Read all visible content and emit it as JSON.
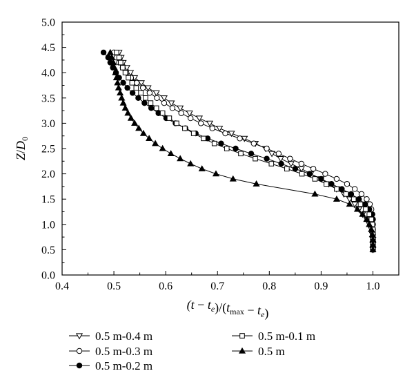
{
  "chart_data": {
    "type": "line",
    "title": "",
    "xlabel": "(t − t_e)/(t_max − t_e)",
    "ylabel": "Z/D_0",
    "xlim": [
      0.4,
      1.05
    ],
    "ylim": [
      0.0,
      5.0
    ],
    "xticks": [
      "0.4",
      "0.5",
      "0.6",
      "0.7",
      "0.8",
      "0.9",
      "1.0"
    ],
    "yticks": [
      "0.0",
      "0.5",
      "1.0",
      "1.5",
      "2.0",
      "2.5",
      "3.0",
      "3.5",
      "4.0",
      "4.5",
      "5.0"
    ],
    "grid": false,
    "legend_position": "below",
    "series": [
      {
        "name": "0.5 m-0.4 m",
        "marker": "triangle-down-open",
        "points": [
          [
            0.51,
            4.4
          ],
          [
            0.514,
            4.3
          ],
          [
            0.518,
            4.2
          ],
          [
            0.525,
            4.1
          ],
          [
            0.532,
            4.0
          ],
          [
            0.54,
            3.9
          ],
          [
            0.553,
            3.8
          ],
          [
            0.566,
            3.7
          ],
          [
            0.582,
            3.6
          ],
          [
            0.597,
            3.5
          ],
          [
            0.611,
            3.4
          ],
          [
            0.628,
            3.3
          ],
          [
            0.646,
            3.2
          ],
          [
            0.665,
            3.1
          ],
          [
            0.685,
            3.0
          ],
          [
            0.704,
            2.9
          ],
          [
            0.727,
            2.8
          ],
          [
            0.752,
            2.7
          ],
          [
            0.773,
            2.6
          ],
          [
            0.793,
            2.5
          ],
          [
            0.805,
            2.4
          ],
          [
            0.822,
            2.3
          ],
          [
            0.842,
            2.2
          ],
          [
            0.862,
            2.1
          ],
          [
            0.88,
            2.0
          ],
          [
            0.9,
            1.9
          ],
          [
            0.915,
            1.8
          ],
          [
            0.93,
            1.7
          ],
          [
            0.944,
            1.6
          ],
          [
            0.955,
            1.5
          ],
          [
            0.965,
            1.4
          ],
          [
            0.973,
            1.3
          ],
          [
            0.98,
            1.2
          ],
          [
            0.988,
            1.1
          ],
          [
            0.993,
            1.0
          ],
          [
            0.997,
            0.9
          ],
          [
            0.999,
            0.8
          ],
          [
            1.0,
            0.7
          ],
          [
            1.0,
            0.6
          ],
          [
            1.0,
            0.5
          ]
        ]
      },
      {
        "name": "0.5 m-0.3 m",
        "marker": "circle-open",
        "points": [
          [
            0.5,
            4.4
          ],
          [
            0.505,
            4.3
          ],
          [
            0.51,
            4.2
          ],
          [
            0.517,
            4.1
          ],
          [
            0.524,
            4.0
          ],
          [
            0.533,
            3.9
          ],
          [
            0.544,
            3.8
          ],
          [
            0.556,
            3.7
          ],
          [
            0.569,
            3.6
          ],
          [
            0.583,
            3.5
          ],
          [
            0.597,
            3.4
          ],
          [
            0.613,
            3.3
          ],
          [
            0.63,
            3.2
          ],
          [
            0.648,
            3.1
          ],
          [
            0.668,
            3.0
          ],
          [
            0.69,
            2.9
          ],
          [
            0.715,
            2.8
          ],
          [
            0.743,
            2.7
          ],
          [
            0.77,
            2.6
          ],
          [
            0.795,
            2.5
          ],
          [
            0.818,
            2.4
          ],
          [
            0.84,
            2.3
          ],
          [
            0.862,
            2.2
          ],
          [
            0.885,
            2.1
          ],
          [
            0.908,
            2.0
          ],
          [
            0.93,
            1.9
          ],
          [
            0.95,
            1.8
          ],
          [
            0.965,
            1.7
          ],
          [
            0.978,
            1.6
          ],
          [
            0.988,
            1.5
          ],
          [
            0.994,
            1.4
          ],
          [
            0.997,
            1.3
          ],
          [
            0.999,
            1.2
          ],
          [
            1.0,
            1.1
          ],
          [
            1.0,
            1.0
          ],
          [
            1.0,
            0.9
          ],
          [
            1.0,
            0.8
          ],
          [
            1.0,
            0.7
          ],
          [
            1.0,
            0.6
          ],
          [
            1.0,
            0.5
          ]
        ]
      },
      {
        "name": "0.5 m-0.2 m",
        "marker": "circle-filled",
        "points": [
          [
            0.48,
            4.4
          ],
          [
            0.489,
            4.3
          ],
          [
            0.493,
            4.2
          ],
          [
            0.498,
            4.1
          ],
          [
            0.504,
            4.0
          ],
          [
            0.51,
            3.9
          ],
          [
            0.518,
            3.8
          ],
          [
            0.526,
            3.7
          ],
          [
            0.536,
            3.6
          ],
          [
            0.547,
            3.5
          ],
          [
            0.559,
            3.4
          ],
          [
            0.572,
            3.3
          ],
          [
            0.586,
            3.2
          ],
          [
            0.601,
            3.1
          ],
          [
            0.619,
            3.0
          ],
          [
            0.638,
            2.9
          ],
          [
            0.658,
            2.8
          ],
          [
            0.681,
            2.7
          ],
          [
            0.707,
            2.6
          ],
          [
            0.735,
            2.5
          ],
          [
            0.765,
            2.4
          ],
          [
            0.795,
            2.3
          ],
          [
            0.823,
            2.2
          ],
          [
            0.85,
            2.1
          ],
          [
            0.878,
            2.0
          ],
          [
            0.9,
            1.9
          ],
          [
            0.92,
            1.8
          ],
          [
            0.94,
            1.7
          ],
          [
            0.958,
            1.6
          ],
          [
            0.973,
            1.5
          ],
          [
            0.985,
            1.4
          ],
          [
            0.993,
            1.3
          ],
          [
            0.998,
            1.2
          ],
          [
            1.0,
            1.1
          ],
          [
            1.0,
            1.0
          ],
          [
            1.0,
            0.9
          ],
          [
            1.0,
            0.8
          ],
          [
            1.0,
            0.7
          ],
          [
            1.0,
            0.6
          ],
          [
            1.0,
            0.5
          ]
        ]
      },
      {
        "name": "0.5 m-0.1 m",
        "marker": "square-open",
        "points": [
          [
            0.505,
            4.4
          ],
          [
            0.51,
            4.3
          ],
          [
            0.513,
            4.2
          ],
          [
            0.517,
            4.1
          ],
          [
            0.522,
            4.0
          ],
          [
            0.528,
            3.9
          ],
          [
            0.535,
            3.8
          ],
          [
            0.543,
            3.7
          ],
          [
            0.552,
            3.6
          ],
          [
            0.561,
            3.5
          ],
          [
            0.571,
            3.4
          ],
          [
            0.582,
            3.3
          ],
          [
            0.594,
            3.2
          ],
          [
            0.607,
            3.1
          ],
          [
            0.621,
            3.0
          ],
          [
            0.637,
            2.9
          ],
          [
            0.654,
            2.8
          ],
          [
            0.673,
            2.7
          ],
          [
            0.694,
            2.6
          ],
          [
            0.718,
            2.5
          ],
          [
            0.745,
            2.4
          ],
          [
            0.773,
            2.3
          ],
          [
            0.804,
            2.2
          ],
          [
            0.834,
            2.1
          ],
          [
            0.863,
            2.0
          ],
          [
            0.888,
            1.9
          ],
          [
            0.91,
            1.8
          ],
          [
            0.93,
            1.7
          ],
          [
            0.948,
            1.6
          ],
          [
            0.963,
            1.5
          ],
          [
            0.976,
            1.4
          ],
          [
            0.986,
            1.3
          ],
          [
            0.993,
            1.2
          ],
          [
            0.997,
            1.1
          ],
          [
            0.999,
            1.0
          ],
          [
            1.0,
            0.9
          ],
          [
            1.0,
            0.8
          ],
          [
            1.0,
            0.7
          ],
          [
            1.0,
            0.6
          ],
          [
            1.0,
            0.5
          ]
        ]
      },
      {
        "name": "0.5 m",
        "marker": "triangle-up-filled",
        "points": [
          [
            0.493,
            4.4
          ],
          [
            0.496,
            4.3
          ],
          [
            0.499,
            4.2
          ],
          [
            0.501,
            4.1
          ],
          [
            0.503,
            4.0
          ],
          [
            0.505,
            3.9
          ],
          [
            0.507,
            3.8
          ],
          [
            0.509,
            3.7
          ],
          [
            0.512,
            3.6
          ],
          [
            0.515,
            3.5
          ],
          [
            0.518,
            3.4
          ],
          [
            0.522,
            3.3
          ],
          [
            0.527,
            3.2
          ],
          [
            0.533,
            3.1
          ],
          [
            0.54,
            3.0
          ],
          [
            0.548,
            2.9
          ],
          [
            0.557,
            2.8
          ],
          [
            0.568,
            2.7
          ],
          [
            0.58,
            2.6
          ],
          [
            0.594,
            2.5
          ],
          [
            0.61,
            2.4
          ],
          [
            0.628,
            2.3
          ],
          [
            0.648,
            2.2
          ],
          [
            0.67,
            2.1
          ],
          [
            0.697,
            2.0
          ],
          [
            0.73,
            1.9
          ],
          [
            0.775,
            1.8
          ],
          [
            0.888,
            1.6
          ],
          [
            0.93,
            1.5
          ],
          [
            0.955,
            1.4
          ],
          [
            0.97,
            1.3
          ],
          [
            0.98,
            1.2
          ],
          [
            0.988,
            1.1
          ],
          [
            0.993,
            1.0
          ],
          [
            0.997,
            0.9
          ],
          [
            0.999,
            0.8
          ],
          [
            1.0,
            0.7
          ],
          [
            1.0,
            0.6
          ],
          [
            1.0,
            0.5
          ]
        ]
      }
    ]
  }
}
